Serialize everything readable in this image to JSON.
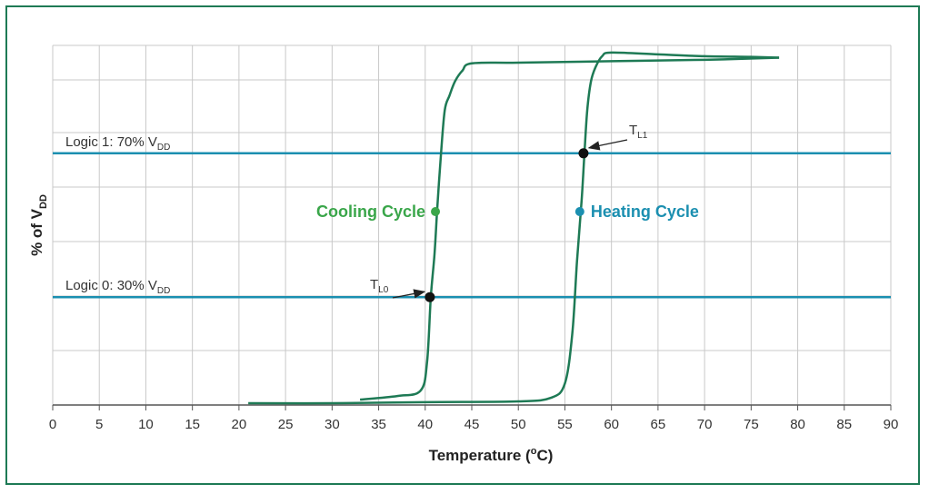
{
  "chart_data": {
    "type": "line",
    "xlabel_main": "Temperature (",
    "xlabel_sup": "o",
    "xlabel_end": "C)",
    "ylabel_main": "% of V",
    "ylabel_sub": "DD",
    "xlim": [
      0,
      90
    ],
    "ylim": [
      0,
      100
    ],
    "grid": true,
    "x_ticks": [
      "0",
      "5",
      "10",
      "15",
      "20",
      "25",
      "30",
      "35",
      "40",
      "45",
      "50",
      "55",
      "60",
      "65",
      "70",
      "75",
      "80",
      "85",
      "90"
    ],
    "thresholds": [
      {
        "label_main": "Logic 1: 70% V",
        "label_sub": "DD",
        "y": 70,
        "color": "#1b8fb0"
      },
      {
        "label_main": "Logic 0: 30% V",
        "label_sub": "DD",
        "y": 30,
        "color": "#1b8fb0"
      }
    ],
    "series": [
      {
        "name": "Cooling Cycle",
        "color": "#1e7a55",
        "x": [
          33,
          37,
          39.5,
          40.2,
          40.6,
          41.0,
          41.3,
          41.7,
          42.1,
          42.6,
          43.2,
          44.0,
          45.0,
          50,
          60,
          70,
          78
        ],
        "y": [
          1.5,
          2.5,
          4,
          12,
          30,
          42,
          55,
          70,
          82,
          86,
          90,
          93,
          95,
          95.2,
          95.6,
          96,
          96.6
        ]
      },
      {
        "name": "Heating Cycle",
        "color": "#1e7a55",
        "x": [
          21,
          30,
          40,
          50,
          53.5,
          55.0,
          55.8,
          56.3,
          56.8,
          57.1,
          57.4,
          57.8,
          58.3,
          59.0,
          60,
          65,
          70,
          75,
          78
        ],
        "y": [
          0.5,
          0.5,
          0.8,
          1.0,
          2.0,
          6,
          20,
          40,
          57,
          70,
          82,
          90,
          94,
          97,
          98,
          97.5,
          97,
          96.8,
          96.6
        ]
      }
    ],
    "annotations": [
      {
        "name": "Cooling Cycle",
        "x": 41.0,
        "y": 50,
        "color": "#3aa64a"
      },
      {
        "name": "Heating Cycle",
        "x": 56.6,
        "y": 50,
        "color": "#1b8fb0"
      },
      {
        "label_main": "T",
        "label_sub": "L0",
        "x": 40.5,
        "y": 30
      },
      {
        "label_main": "T",
        "label_sub": "L1",
        "x": 57.0,
        "y": 70
      }
    ]
  }
}
